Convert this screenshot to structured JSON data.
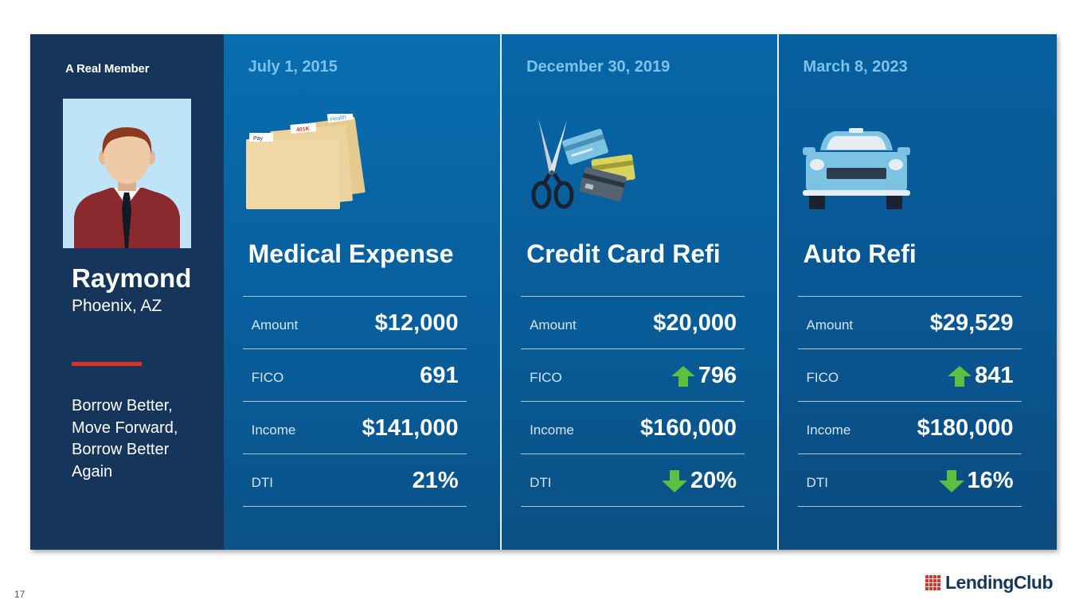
{
  "member": {
    "tag": "A Real Member",
    "name": "Raymond",
    "location": "Phoenix, AZ",
    "tagline": "Borrow Better, Move Forward, Borrow Better Again"
  },
  "loans": [
    {
      "date": "July 1, 2015",
      "title": "Medical Expense",
      "icon": "file-folders-icon",
      "folder_tabs": [
        "Pay",
        "401K",
        "Health"
      ],
      "stats": [
        {
          "label": "Amount",
          "value": "$12,000",
          "trend": "none"
        },
        {
          "label": "FICO",
          "value": "691",
          "trend": "none"
        },
        {
          "label": "Income",
          "value": "$141,000",
          "trend": "none"
        },
        {
          "label": "DTI",
          "value": "21%",
          "trend": "none"
        }
      ]
    },
    {
      "date": "December 30, 2019",
      "title": "Credit Card Refi",
      "icon": "scissors-credit-cards-icon",
      "stats": [
        {
          "label": "Amount",
          "value": "$20,000",
          "trend": "none"
        },
        {
          "label": "FICO",
          "value": "796",
          "trend": "up"
        },
        {
          "label": "Income",
          "value": "$160,000",
          "trend": "none"
        },
        {
          "label": "DTI",
          "value": "20%",
          "trend": "down"
        }
      ]
    },
    {
      "date": "March 8, 2023",
      "title": "Auto Refi",
      "icon": "car-icon",
      "stats": [
        {
          "label": "Amount",
          "value": "$29,529",
          "trend": "none"
        },
        {
          "label": "FICO",
          "value": "841",
          "trend": "up"
        },
        {
          "label": "Income",
          "value": "$180,000",
          "trend": "none"
        },
        {
          "label": "DTI",
          "value": "16%",
          "trend": "down"
        }
      ]
    }
  ],
  "colors": {
    "member_bg": "#15365a",
    "accent_red": "#d8322a",
    "date_blue": "#7cc3ec",
    "arrow_green": "#5cbf3f"
  },
  "footer": {
    "page_number": "17",
    "logo_text": "LendingClub"
  }
}
